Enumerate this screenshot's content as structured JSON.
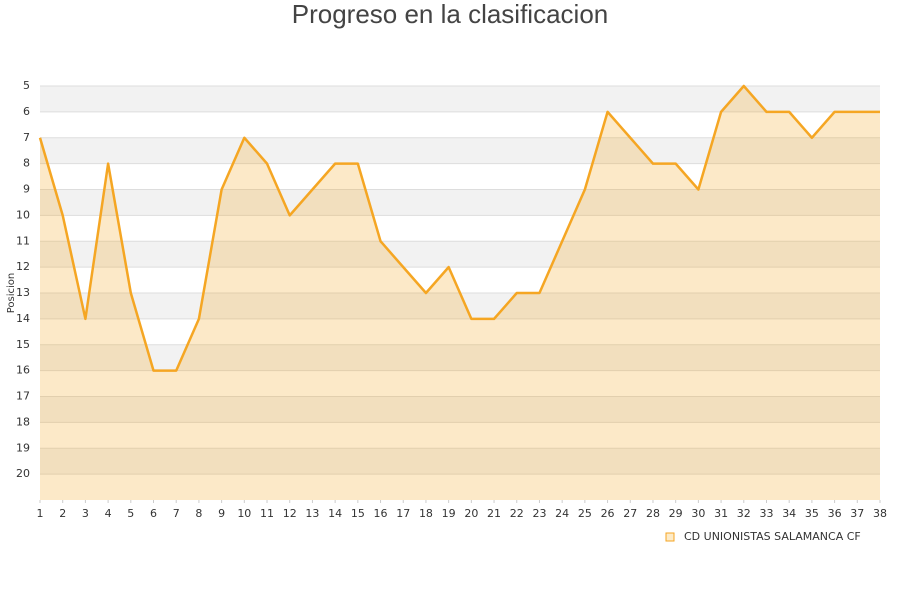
{
  "chart_data": {
    "type": "line",
    "title": "Progreso en la clasificacion",
    "y_label": "Posicion",
    "x": [
      1,
      2,
      3,
      4,
      5,
      6,
      7,
      8,
      9,
      10,
      11,
      12,
      13,
      14,
      15,
      16,
      17,
      18,
      19,
      20,
      21,
      22,
      23,
      24,
      25,
      26,
      27,
      28,
      29,
      30,
      31,
      32,
      33,
      34,
      35,
      36,
      37,
      38
    ],
    "xlim": [
      1,
      38
    ],
    "xticks": [
      1,
      2,
      3,
      4,
      5,
      6,
      7,
      8,
      9,
      10,
      11,
      12,
      13,
      14,
      15,
      16,
      17,
      18,
      19,
      20,
      21,
      22,
      23,
      24,
      25,
      26,
      27,
      28,
      29,
      30,
      31,
      32,
      33,
      34,
      35,
      36,
      37,
      38
    ],
    "ylim": [
      21,
      5
    ],
    "yticks": [
      5,
      6,
      7,
      8,
      9,
      10,
      11,
      12,
      13,
      14,
      15,
      16,
      17,
      18,
      19,
      20
    ],
    "grid": true,
    "legend": "bottom-right",
    "series": [
      {
        "name": "CD UNIONISTAS SALAMANCA CF",
        "color": "#f5a623",
        "values": [
          7,
          10,
          14,
          8,
          13,
          16,
          16,
          14,
          9,
          7,
          8,
          10,
          9,
          8,
          8,
          11,
          12,
          13,
          12,
          14,
          14,
          13,
          13,
          11,
          9,
          6,
          7,
          8,
          8,
          9,
          6,
          5,
          6,
          6,
          7,
          6,
          6,
          6
        ]
      }
    ]
  }
}
